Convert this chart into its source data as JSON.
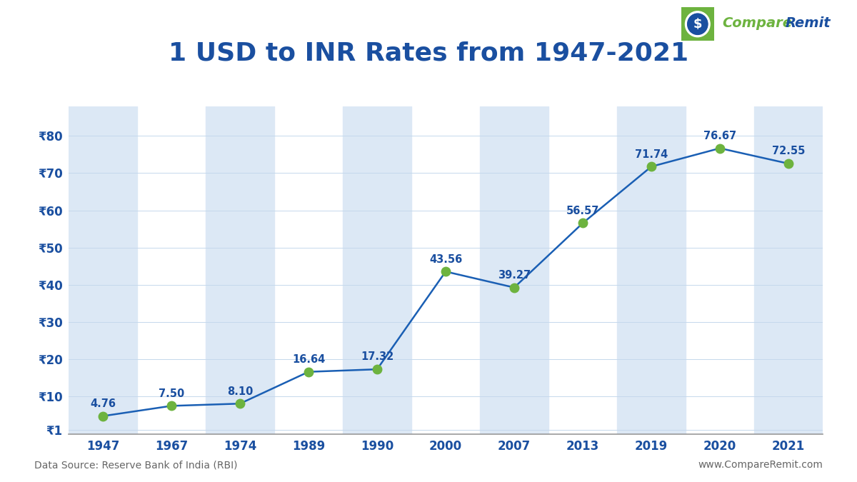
{
  "title": "1 USD to INR Rates from 1947-2021",
  "title_color": "#1a4fa0",
  "title_fontsize": 26,
  "years": [
    1947,
    1967,
    1974,
    1989,
    1990,
    2000,
    2007,
    2013,
    2019,
    2020,
    2021
  ],
  "values": [
    4.76,
    7.5,
    8.1,
    16.64,
    17.32,
    43.56,
    39.27,
    56.57,
    71.74,
    76.67,
    72.55
  ],
  "value_labels": [
    "4.76",
    "7.50",
    "8.10",
    "16.64",
    "17.32",
    "43.56",
    "39.27",
    "56.57",
    "71.74",
    "76.67",
    "72.55"
  ],
  "line_color": "#1a5fb4",
  "marker_color": "#6db33f",
  "marker_size": 9,
  "line_width": 1.8,
  "yticks": [
    1,
    10,
    20,
    30,
    40,
    50,
    60,
    70,
    80
  ],
  "ytick_labels": [
    "₹1",
    "₹10",
    "₹20",
    "₹30",
    "₹40",
    "₹50",
    "₹60",
    "₹70",
    "₹80"
  ],
  "ytick_color": "#1a4fa0",
  "xtick_color": "#1a4fa0",
  "bg_color": "#ffffff",
  "stripe_color": "#dce8f5",
  "ylim": [
    0,
    88
  ],
  "data_label_color": "#1a4fa0",
  "data_label_fontsize": 10.5,
  "footer_left": "Data Source: Reserve Bank of India (RBI)",
  "footer_right": "www.CompareRemit.com",
  "footer_color": "#666666",
  "footer_fontsize": 10,
  "logo_compare_color": "#6db33f",
  "logo_remit_color": "#1a4fa0",
  "logo_green": "#6db33f",
  "logo_blue": "#1a4fa0"
}
